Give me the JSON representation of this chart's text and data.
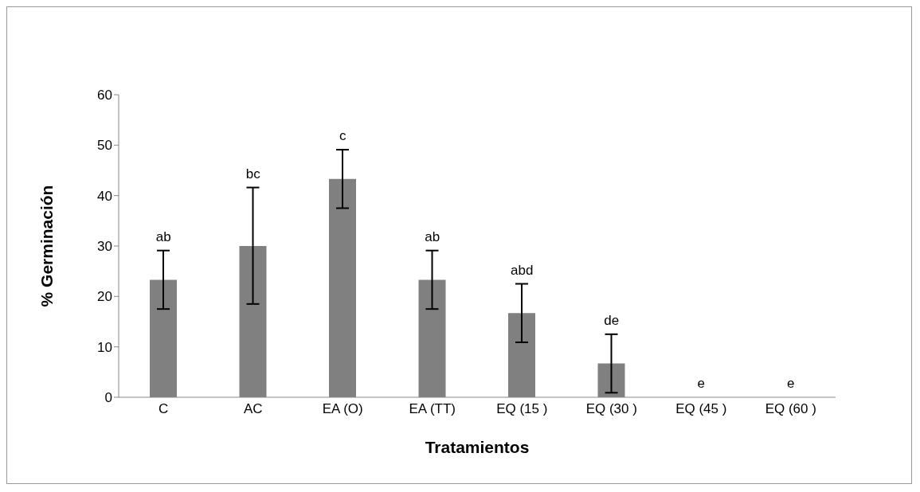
{
  "chart_data": {
    "type": "bar",
    "xlabel": "Tratamientos",
    "ylabel": "% Germinación",
    "categories": [
      "C",
      "AC",
      "EA (O)",
      "EA (TT)",
      "EQ (15 )",
      "EQ (30 )",
      "EQ (45 )",
      "EQ (60 )"
    ],
    "values": [
      23.3,
      30,
      43.3,
      23.3,
      16.7,
      6.7,
      0,
      0
    ],
    "errors": [
      [
        17.5,
        29.1
      ],
      [
        18.5,
        41.6
      ],
      [
        37.5,
        49.1
      ],
      [
        17.5,
        29.1
      ],
      [
        10.9,
        22.5
      ],
      [
        0.9,
        12.5
      ],
      null,
      null
    ],
    "color": "#808080",
    "ylim": [
      0,
      60
    ],
    "yticks": [
      0,
      10,
      20,
      30,
      40,
      50,
      60
    ],
    "grid": false,
    "legend": false,
    "annotations": [
      {
        "text": "ab",
        "x": "C",
        "y": 29.1
      },
      {
        "text": "bc",
        "x": "AC",
        "y": 41.6
      },
      {
        "text": "c",
        "x": "EA (O)",
        "y": 49.1
      },
      {
        "text": "ab",
        "x": "EA (TT)",
        "y": 29.1
      },
      {
        "text": "abd",
        "x": "EQ (15 )",
        "y": 22.5
      },
      {
        "text": "de",
        "x": "EQ (30 )",
        "y": 12.5
      },
      {
        "text": "e",
        "x": "EQ (45 )",
        "y": 0
      },
      {
        "text": "e",
        "x": "EQ (60 )",
        "y": 0
      }
    ]
  }
}
